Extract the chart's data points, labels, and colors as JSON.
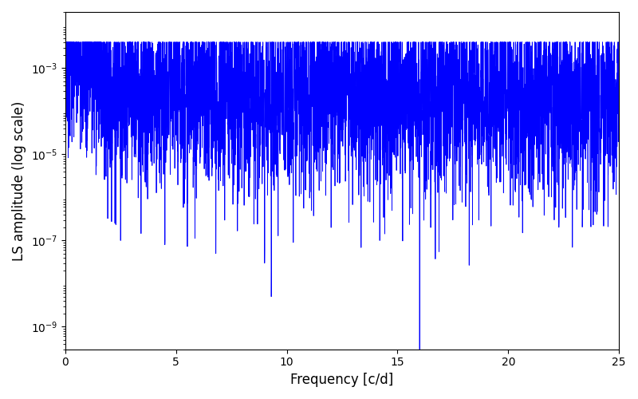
{
  "title": "",
  "xlabel": "Frequency [c/d]",
  "ylabel": "LS amplitude (log scale)",
  "xlim": [
    0,
    25
  ],
  "ylim_log": [
    3e-10,
    0.02
  ],
  "yticks": [
    1e-09,
    1e-07,
    1e-05,
    0.001
  ],
  "xticks": [
    0,
    5,
    10,
    15,
    20,
    25
  ],
  "line_color": "#0000ff",
  "line_width": 0.6,
  "seed": 7,
  "n_points": 5000,
  "freq_max": 25.0,
  "background_color": "#ffffff",
  "figsize": [
    8.0,
    5.0
  ],
  "dpi": 100
}
